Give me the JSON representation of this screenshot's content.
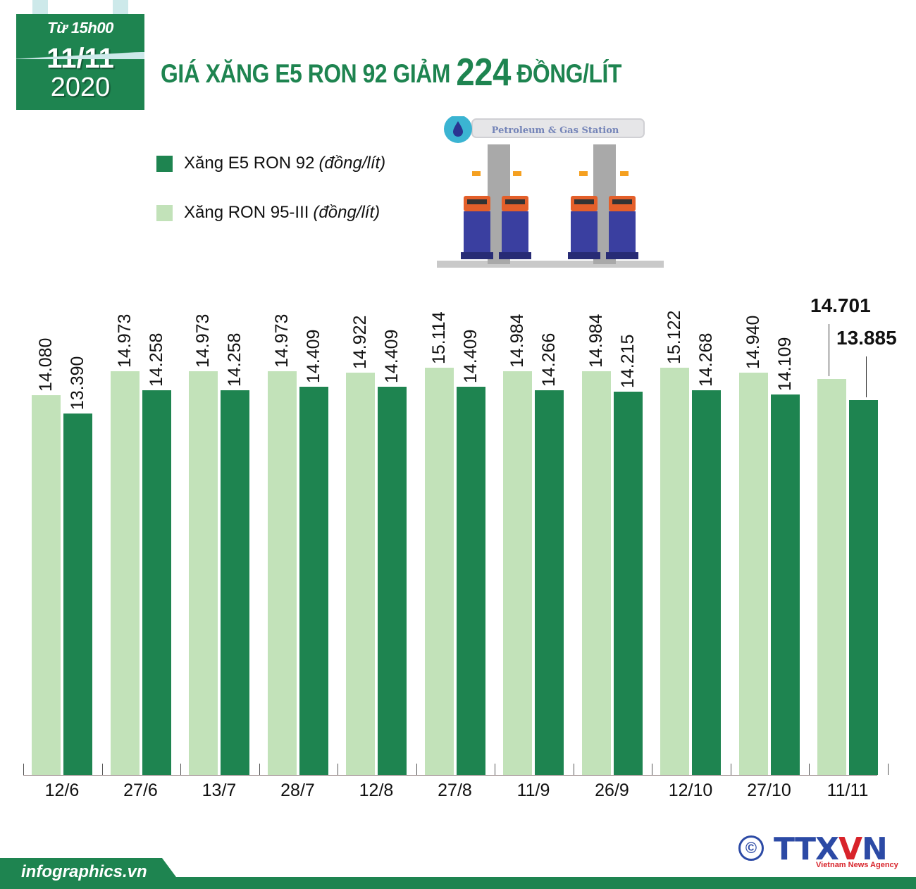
{
  "header": {
    "time": "Từ 15h00",
    "day": "11/11",
    "year": "2020",
    "title_pre": "GIÁ XĂNG E5 RON 92 GIẢM",
    "title_num": "224",
    "title_post": "ĐỒNG/LÍT"
  },
  "legend": [
    {
      "label": "Xăng E5 RON 92",
      "unit": "(đồng/lít)",
      "color": "#1e8450"
    },
    {
      "label": "Xăng RON 95-III",
      "unit": "(đồng/lít)",
      "color": "#c2e2b9"
    }
  ],
  "illustration": {
    "sign_text": "Petroleum & Gas Station",
    "icon": "fuel-drop-icon"
  },
  "footer": {
    "site": "infographics.vn",
    "copyright": "©",
    "agency_logo": "TTXVN",
    "agency_tagline": "Vietnam News Agency"
  },
  "chart_data": {
    "type": "bar",
    "title": "GIÁ XĂNG E5 RON 92 GIẢM 224 ĐỒNG/LÍT",
    "xlabel": "",
    "ylabel": "đồng/lít",
    "grid": false,
    "legend_position": "top-left",
    "categories": [
      "12/6",
      "27/6",
      "13/7",
      "28/7",
      "12/8",
      "27/8",
      "11/9",
      "26/9",
      "12/10",
      "27/10",
      "11/11"
    ],
    "series": [
      {
        "name": "Xăng RON 95-III (đồng/lít)",
        "color": "#c2e2b9",
        "values": [
          14080,
          14973,
          14973,
          14973,
          14922,
          15114,
          14984,
          14984,
          15122,
          14940,
          14701
        ],
        "labels": [
          "14.080",
          "14.973",
          "14.973",
          "14.973",
          "14.922",
          "15.114",
          "14.984",
          "14.984",
          "15.122",
          "14.940",
          "14.701"
        ]
      },
      {
        "name": "Xăng E5 RON 92 (đồng/lít)",
        "color": "#1e8450",
        "values": [
          13390,
          14258,
          14258,
          14409,
          14409,
          14409,
          14266,
          14215,
          14268,
          14109,
          13885
        ],
        "labels": [
          "13.390",
          "14.258",
          "14.258",
          "14.409",
          "14.409",
          "14.409",
          "14.266",
          "14.215",
          "14.268",
          "14.109",
          "13.885"
        ]
      }
    ]
  }
}
